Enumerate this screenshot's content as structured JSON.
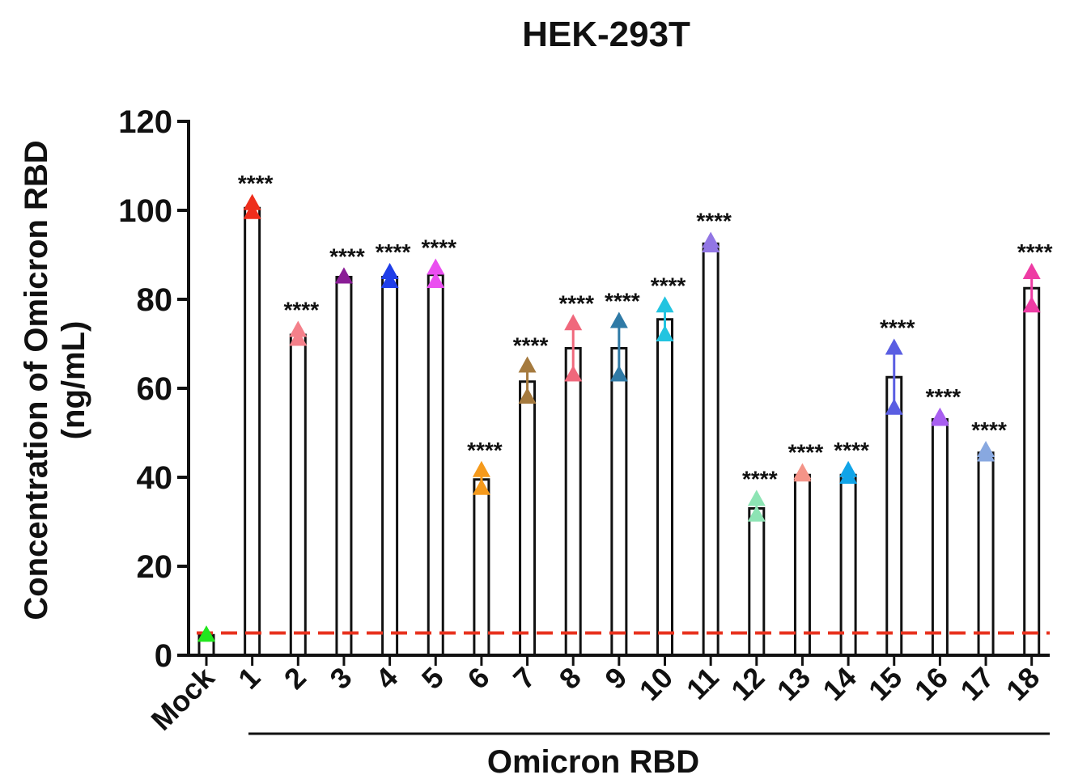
{
  "chart_data": {
    "type": "bar",
    "title": "HEK-293T",
    "ylabel_line1": "Concentration of Omicron RBD",
    "ylabel_line2": "(ng/mL)",
    "group_label": "Omicron RBD",
    "ylim": [
      0,
      120
    ],
    "yticks": [
      0,
      20,
      40,
      60,
      80,
      100,
      120
    ],
    "threshold": 5,
    "threshold_color": "#e8321e",
    "categories": [
      "Mock",
      "1",
      "2",
      "3",
      "4",
      "5",
      "6",
      "7",
      "8",
      "9",
      "10",
      "11",
      "12",
      "13",
      "14",
      "15",
      "16",
      "17",
      "18"
    ],
    "values": [
      4.5,
      100.5,
      72,
      85,
      85,
      85.5,
      39.5,
      61.5,
      69,
      69,
      75.5,
      92.5,
      33,
      40.5,
      40.5,
      62.5,
      53,
      45.5,
      82.5
    ],
    "points": [
      [
        4.5,
        4.5
      ],
      [
        101.5,
        99.5
      ],
      [
        73,
        71
      ],
      [
        85,
        85
      ],
      [
        86,
        84
      ],
      [
        87,
        84
      ],
      [
        41.5,
        37.5
      ],
      [
        65,
        58
      ],
      [
        74.5,
        63
      ],
      [
        75,
        63
      ],
      [
        78.5,
        72
      ],
      [
        93,
        92
      ],
      [
        35,
        31.5
      ],
      [
        41,
        40.5
      ],
      [
        41.5,
        40
      ],
      [
        69,
        55.5
      ],
      [
        53.5,
        53
      ],
      [
        46,
        45
      ],
      [
        86,
        78.5
      ]
    ],
    "colors": [
      "#22e61e",
      "#ee2e1c",
      "#f4808a",
      "#8a1d96",
      "#1f3ee8",
      "#ea4ef0",
      "#f59a1c",
      "#a57a3e",
      "#f0687c",
      "#2f7aa6",
      "#22c4e0",
      "#9276e4",
      "#8de4b4",
      "#f49488",
      "#10a4e8",
      "#5a5ee2",
      "#a85ef0",
      "#88a8e0",
      "#ee3ca4"
    ],
    "significance": [
      "",
      "****",
      "****",
      "****",
      "****",
      "****",
      "****",
      "****",
      "****",
      "****",
      "****",
      "****",
      "****",
      "****",
      "****",
      "****",
      "****",
      "****",
      "****"
    ]
  }
}
